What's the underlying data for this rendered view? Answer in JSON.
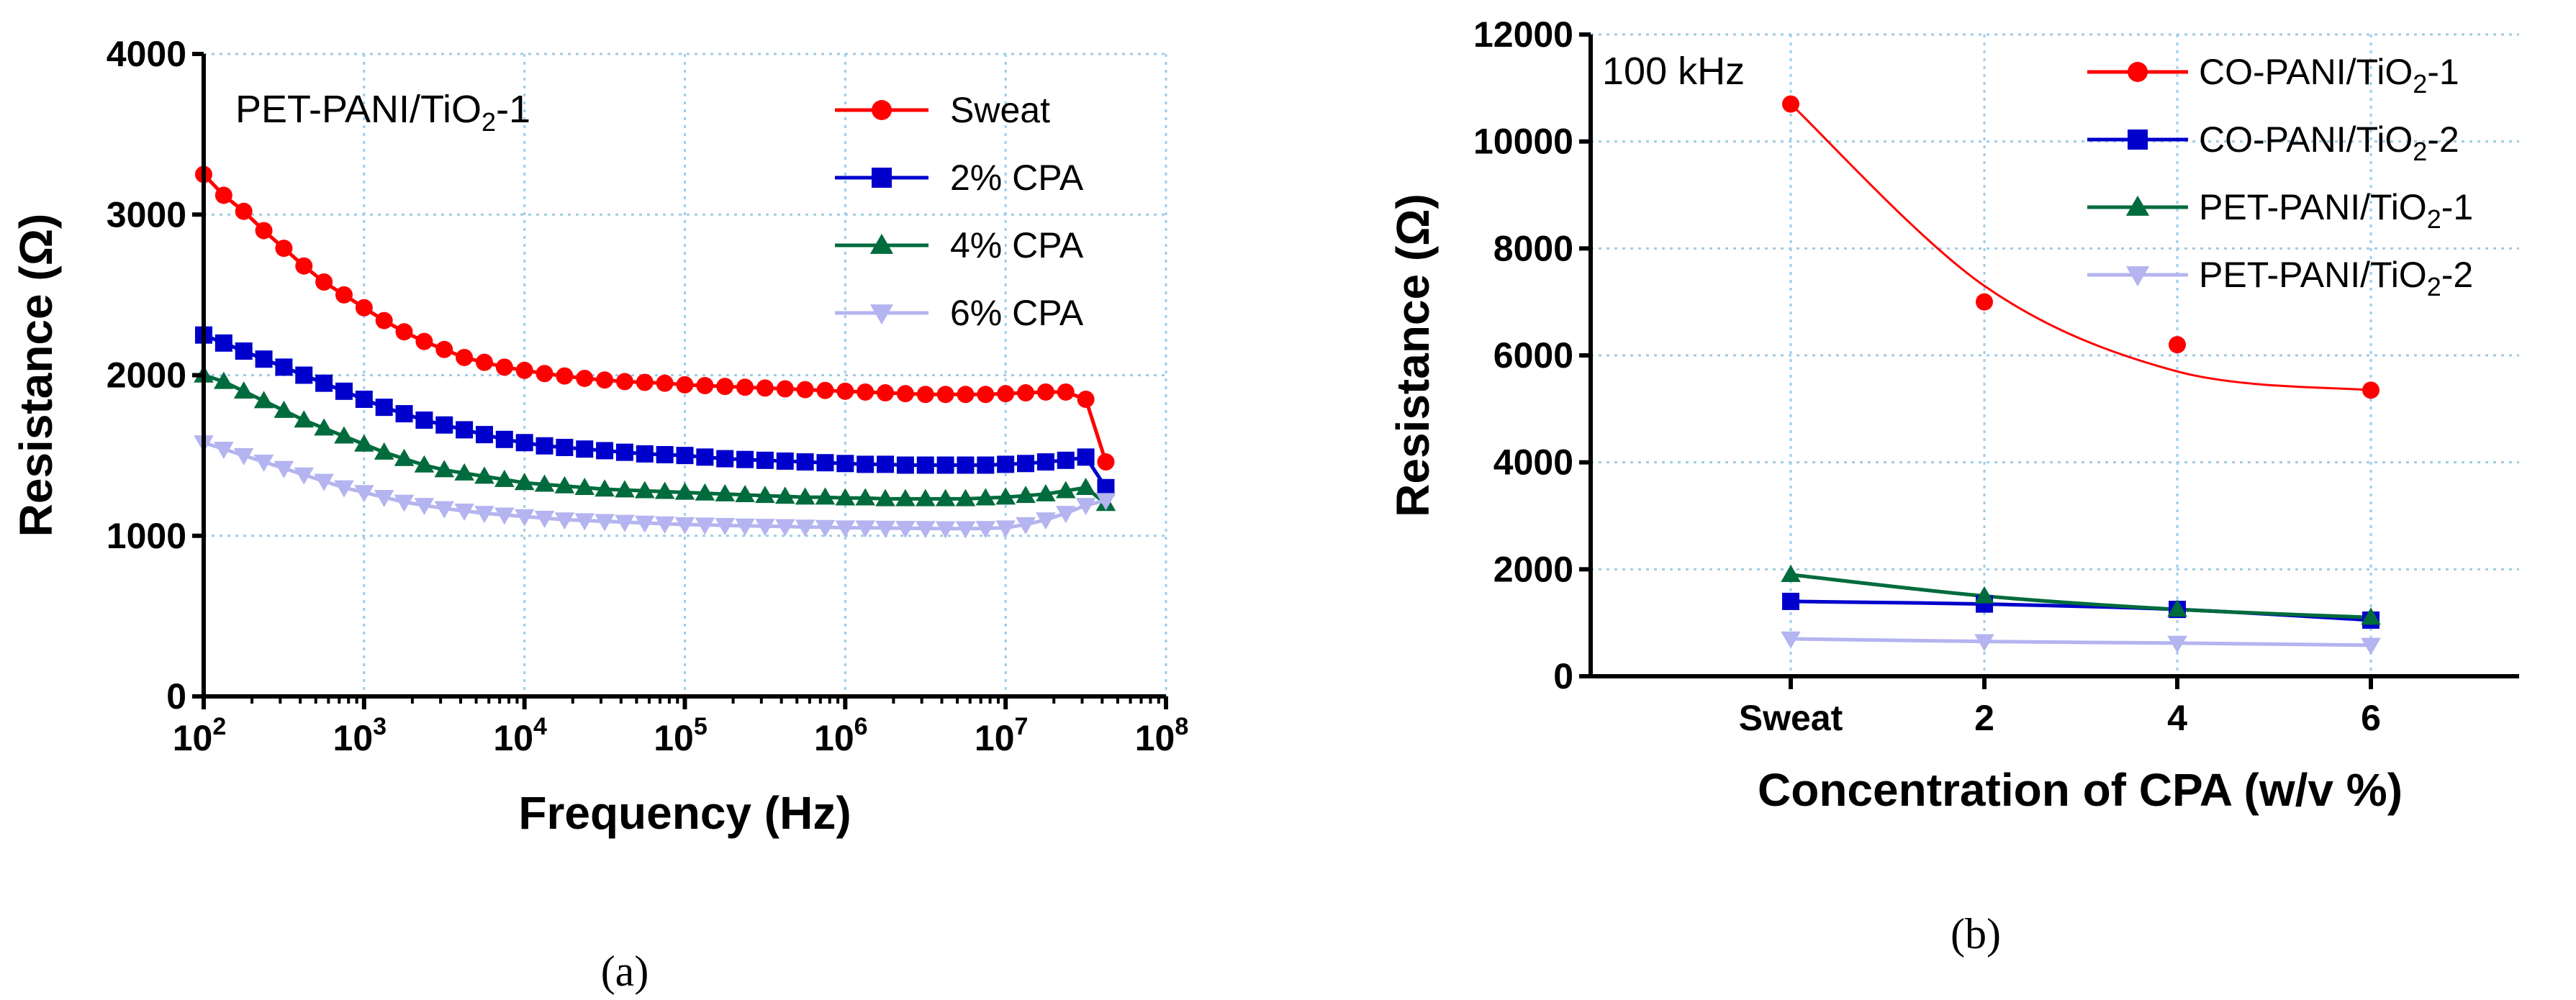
{
  "figure": {
    "panel_labels": [
      "(a)",
      "(b)"
    ]
  },
  "chart_data": [
    {
      "type": "line",
      "panel": "(a)",
      "inset_title": "PET-PANI/TiO2-1",
      "xlabel": "Frequency (Hz)",
      "ylabel": "Resistance (Ω)",
      "xscale": "log",
      "xlim": [
        100,
        100000000
      ],
      "ylim": [
        0,
        4000
      ],
      "x_ticks": [
        {
          "base": "10",
          "exp": "2"
        },
        {
          "base": "10",
          "exp": "3"
        },
        {
          "base": "10",
          "exp": "4"
        },
        {
          "base": "10",
          "exp": "5"
        },
        {
          "base": "10",
          "exp": "6"
        },
        {
          "base": "10",
          "exp": "7"
        },
        {
          "base": "10",
          "exp": "8"
        }
      ],
      "y_ticks": [
        "0",
        "1000",
        "2000",
        "3000",
        "4000"
      ],
      "grid": true,
      "legend_position": "top-right",
      "x_log": [
        2.0,
        2.125,
        2.25,
        2.375,
        2.5,
        2.625,
        2.75,
        2.875,
        3.0,
        3.125,
        3.25,
        3.375,
        3.5,
        3.625,
        3.75,
        3.875,
        4.0,
        4.125,
        4.25,
        4.375,
        4.5,
        4.625,
        4.75,
        4.875,
        5.0,
        5.125,
        5.25,
        5.375,
        5.5,
        5.625,
        5.75,
        5.875,
        6.0,
        6.125,
        6.25,
        6.375,
        6.5,
        6.625,
        6.75,
        6.875,
        7.0,
        7.125,
        7.25,
        7.375,
        7.5,
        7.625
      ],
      "series": [
        {
          "name": "Sweat",
          "color": "#ff0000",
          "marker": "circle",
          "values": [
            3250,
            3120,
            3020,
            2900,
            2790,
            2680,
            2580,
            2500,
            2420,
            2340,
            2270,
            2210,
            2160,
            2110,
            2080,
            2050,
            2030,
            2010,
            1995,
            1980,
            1970,
            1960,
            1955,
            1950,
            1940,
            1935,
            1930,
            1925,
            1920,
            1915,
            1910,
            1905,
            1900,
            1895,
            1890,
            1885,
            1880,
            1880,
            1880,
            1880,
            1885,
            1890,
            1895,
            1895,
            1850,
            1460
          ]
        },
        {
          "name": "2% CPA",
          "color": "#0000cc",
          "marker": "square",
          "values": [
            2250,
            2200,
            2150,
            2100,
            2050,
            2000,
            1950,
            1900,
            1850,
            1800,
            1760,
            1720,
            1690,
            1660,
            1630,
            1600,
            1580,
            1560,
            1550,
            1540,
            1530,
            1520,
            1510,
            1505,
            1500,
            1490,
            1480,
            1475,
            1470,
            1465,
            1460,
            1455,
            1450,
            1445,
            1445,
            1440,
            1440,
            1440,
            1440,
            1440,
            1445,
            1450,
            1460,
            1470,
            1490,
            1300
          ]
        },
        {
          "name": "4% CPA",
          "color": "#006b3c",
          "marker": "triangle-up",
          "values": [
            2000,
            1960,
            1900,
            1840,
            1780,
            1720,
            1670,
            1620,
            1570,
            1520,
            1480,
            1440,
            1410,
            1390,
            1370,
            1350,
            1330,
            1320,
            1310,
            1300,
            1290,
            1285,
            1280,
            1275,
            1270,
            1265,
            1260,
            1255,
            1250,
            1245,
            1240,
            1240,
            1235,
            1235,
            1230,
            1230,
            1230,
            1230,
            1230,
            1235,
            1240,
            1250,
            1260,
            1280,
            1300,
            1200
          ]
        },
        {
          "name": "6% CPA",
          "color": "#b4b4f0",
          "marker": "triangle-down",
          "values": [
            1580,
            1540,
            1500,
            1460,
            1420,
            1380,
            1340,
            1300,
            1270,
            1240,
            1210,
            1190,
            1170,
            1155,
            1140,
            1130,
            1120,
            1110,
            1100,
            1095,
            1090,
            1085,
            1080,
            1075,
            1070,
            1068,
            1065,
            1062,
            1060,
            1058,
            1055,
            1053,
            1050,
            1050,
            1048,
            1047,
            1046,
            1045,
            1045,
            1046,
            1050,
            1070,
            1100,
            1140,
            1190,
            1220
          ]
        }
      ]
    },
    {
      "type": "scatter",
      "panel": "(b)",
      "inset_title": "100 kHz",
      "xlabel": "Concentration of CPA (w/v %)",
      "ylabel": "Resistance (Ω)",
      "categories": [
        "Sweat",
        "2",
        "4",
        "6"
      ],
      "ylim": [
        0,
        12000
      ],
      "y_ticks": [
        "0",
        "2000",
        "4000",
        "6000",
        "8000",
        "10000",
        "12000"
      ],
      "grid": true,
      "legend_position": "top-right",
      "series": [
        {
          "name": "CO-PANI/TiO2-1",
          "color": "#ff0000",
          "marker": "circle",
          "values": [
            10700,
            7000,
            6200,
            5350
          ],
          "fit": [
            10700,
            7300,
            5700,
            5350
          ]
        },
        {
          "name": "CO-PANI/TiO2-2",
          "color": "#0000cc",
          "marker": "square",
          "values": [
            1400,
            1350,
            1250,
            1050
          ],
          "fit": [
            1400,
            1350,
            1250,
            1050
          ]
        },
        {
          "name": "PET-PANI/TiO2-1",
          "color": "#006b3c",
          "marker": "triangle-up",
          "values": [
            1900,
            1500,
            1250,
            1100
          ],
          "fit": [
            1900,
            1500,
            1250,
            1100
          ]
        },
        {
          "name": "PET-PANI/TiO2-2",
          "color": "#b4b4f0",
          "marker": "triangle-down",
          "values": [
            700,
            650,
            620,
            580
          ],
          "fit": [
            700,
            650,
            620,
            580
          ]
        }
      ]
    }
  ]
}
